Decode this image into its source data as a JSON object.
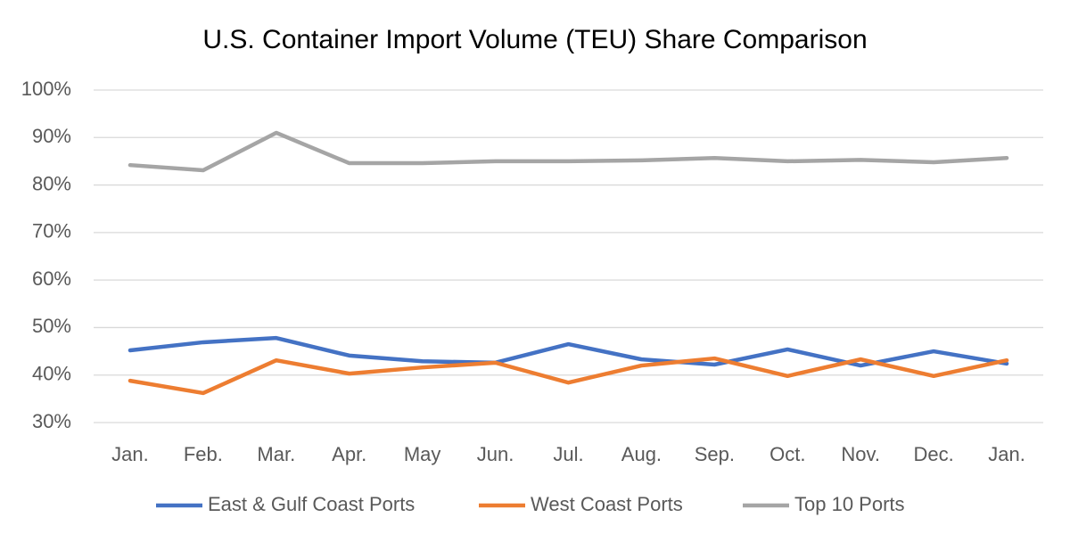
{
  "chart_data": {
    "type": "line",
    "title": "U.S. Container Import Volume (TEU) Share Comparison",
    "categories": [
      "Jan.",
      "Feb.",
      "Mar.",
      "Apr.",
      "May",
      "Jun.",
      "Jul.",
      "Aug.",
      "Sep.",
      "Oct.",
      "Nov.",
      "Dec.",
      "Jan."
    ],
    "series": [
      {
        "name": "East & Gulf Coast Ports",
        "color": "#4472c4",
        "values": [
          45.2,
          46.9,
          47.8,
          44.1,
          42.9,
          42.6,
          46.5,
          43.3,
          42.2,
          45.4,
          42.0,
          45.0,
          42.4
        ]
      },
      {
        "name": "West Coast Ports",
        "color": "#ed7d31",
        "values": [
          38.8,
          36.2,
          43.1,
          40.3,
          41.6,
          42.6,
          38.4,
          42.0,
          43.5,
          39.8,
          43.3,
          39.8,
          43.1
        ]
      },
      {
        "name": "Top 10 Ports",
        "color": "#a5a5a5",
        "values": [
          84.2,
          83.1,
          91.0,
          84.6,
          84.6,
          85.0,
          85.0,
          85.2,
          85.7,
          85.0,
          85.3,
          84.8,
          85.7
        ]
      }
    ],
    "ylim": [
      30,
      100
    ],
    "yticks": [
      {
        "value": 30,
        "label": "30%"
      },
      {
        "value": 40,
        "label": "40%"
      },
      {
        "value": 50,
        "label": "50%"
      },
      {
        "value": 60,
        "label": "60%"
      },
      {
        "value": 70,
        "label": "70%"
      },
      {
        "value": 80,
        "label": "80%"
      },
      {
        "value": 90,
        "label": "90%"
      },
      {
        "value": 100,
        "label": "100%"
      }
    ],
    "grid": true,
    "legend": "bottom"
  }
}
